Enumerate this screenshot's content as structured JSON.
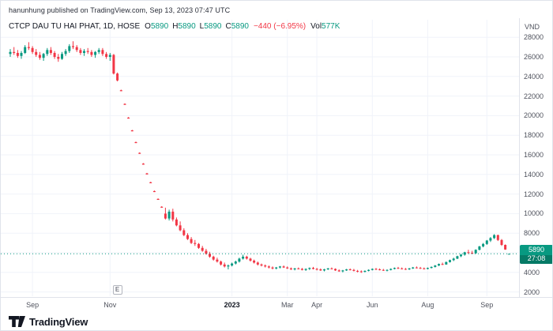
{
  "header": {
    "attribution": "hanunhung published on TradingView.com, Sep 13, 2023 07:47 UTC"
  },
  "legend": {
    "symbol": "CTCP DAU TU HAI PHAT, 1D, HOSE",
    "ohlc": [
      {
        "label": "O",
        "value": "5890"
      },
      {
        "label": "H",
        "value": "5890"
      },
      {
        "label": "L",
        "value": "5890"
      },
      {
        "label": "C",
        "value": "5890"
      }
    ],
    "change": "−440 (−6.95%)",
    "volume_label": "Vol",
    "volume_value": "577K"
  },
  "price_scale": {
    "currency": "VND",
    "last_price_label": "5890",
    "countdown": "27:08"
  },
  "events": [
    {
      "type": "earnings",
      "label": "E",
      "bar": 29
    }
  ],
  "footer": {
    "brand": "TradingView"
  },
  "colors": {
    "up": "#089981",
    "down": "#f23645",
    "grid": "#f0f3fa",
    "axis_border": "#e0e3eb",
    "text": "#131722",
    "muted": "#50535e",
    "countdown_bg": "#067a66"
  },
  "chart_data": {
    "type": "candlestick",
    "title": "CTCP DAU TU HAI PHAT, 1D, HOSE",
    "symbol": "CTCP DAU TU HAI PHAT",
    "timeframe": "1D",
    "exchange": "HOSE",
    "ylabel": "VND",
    "grid": true,
    "y_range": [
      1400,
      28500
    ],
    "y_ticks": [
      28000,
      26000,
      24000,
      22000,
      20000,
      18000,
      16000,
      14000,
      12000,
      10000,
      8000,
      6000,
      4000,
      2000
    ],
    "x_ticks": [
      {
        "label": "Sep",
        "bar": 6
      },
      {
        "label": "Nov",
        "bar": 27
      },
      {
        "label": "2023",
        "bar": 60,
        "major": true
      },
      {
        "label": "Mar",
        "bar": 75
      },
      {
        "label": "Apr",
        "bar": 83
      },
      {
        "label": "Jun",
        "bar": 98
      },
      {
        "label": "Aug",
        "bar": 113
      },
      {
        "label": "Sep",
        "bar": 129
      }
    ],
    "open": 5890,
    "high": 5890,
    "low": 5890,
    "close": 5890,
    "last_price": 5890,
    "prev_close": 6330,
    "change": -440,
    "change_pct": -6.95,
    "volume": "577K",
    "bars": [
      [
        26300,
        26800,
        26000,
        26500
      ],
      [
        26500,
        27000,
        26200,
        26400
      ],
      [
        26400,
        26700,
        25900,
        26100
      ],
      [
        26100,
        26600,
        25800,
        26400
      ],
      [
        26400,
        27200,
        26300,
        27000
      ],
      [
        27000,
        27500,
        26700,
        26900
      ],
      [
        26900,
        27100,
        26300,
        26500
      ],
      [
        26500,
        26800,
        26000,
        26200
      ],
      [
        26200,
        26500,
        25700,
        25900
      ],
      [
        25900,
        26400,
        25600,
        26300
      ],
      [
        26300,
        26900,
        26100,
        26700
      ],
      [
        26700,
        27000,
        26200,
        26400
      ],
      [
        26400,
        26600,
        25800,
        26000
      ],
      [
        26000,
        26300,
        25500,
        25800
      ],
      [
        25800,
        26500,
        25700,
        26300
      ],
      [
        26300,
        26800,
        26100,
        26600
      ],
      [
        26600,
        27300,
        26400,
        27100
      ],
      [
        27100,
        27600,
        26800,
        27000
      ],
      [
        27000,
        27200,
        26500,
        26700
      ],
      [
        26700,
        26900,
        26200,
        26400
      ],
      [
        26400,
        26800,
        26100,
        26600
      ],
      [
        26600,
        26900,
        26300,
        26500
      ],
      [
        26500,
        26700,
        26000,
        26200
      ],
      [
        26200,
        26600,
        25900,
        26500
      ],
      [
        26500,
        26900,
        26300,
        26700
      ],
      [
        26700,
        26900,
        26100,
        26300
      ],
      [
        26300,
        26500,
        25800,
        26000
      ],
      [
        26000,
        26400,
        25600,
        26200
      ],
      [
        26200,
        26300,
        24200,
        24300
      ],
      [
        24300,
        24400,
        23500,
        23600
      ],
      [
        22600,
        22650,
        22500,
        22500
      ],
      [
        21200,
        21250,
        21100,
        21100
      ],
      [
        19800,
        19850,
        19700,
        19700
      ],
      [
        18500,
        18550,
        18400,
        18400
      ],
      [
        17300,
        17350,
        17200,
        17200
      ],
      [
        16200,
        16250,
        16100,
        16100
      ],
      [
        15100,
        15150,
        15000,
        15000
      ],
      [
        14100,
        14150,
        14000,
        14000
      ],
      [
        13200,
        13250,
        13100,
        13100
      ],
      [
        12300,
        12350,
        12200,
        12200
      ],
      [
        11500,
        11550,
        11400,
        11400
      ],
      [
        10700,
        10750,
        10600,
        10600
      ],
      [
        10000,
        10600,
        9400,
        9500
      ],
      [
        9500,
        10400,
        9300,
        10200
      ],
      [
        10200,
        10500,
        9200,
        9400
      ],
      [
        9400,
        9600,
        8700,
        8800
      ],
      [
        8800,
        9200,
        8200,
        8300
      ],
      [
        8300,
        8500,
        7700,
        7800
      ],
      [
        7800,
        8000,
        7300,
        7400
      ],
      [
        7400,
        7600,
        6900,
        7000
      ],
      [
        7000,
        7300,
        6700,
        6900
      ],
      [
        6900,
        7000,
        6400,
        6500
      ],
      [
        6500,
        6700,
        6100,
        6200
      ],
      [
        6200,
        6400,
        5800,
        5900
      ],
      [
        5900,
        6100,
        5500,
        5600
      ],
      [
        5600,
        5700,
        5200,
        5300
      ],
      [
        5300,
        5500,
        5000,
        5100
      ],
      [
        5100,
        5200,
        4700,
        4800
      ],
      [
        4800,
        5000,
        4500,
        4600
      ],
      [
        4600,
        4800,
        4300,
        4700
      ],
      [
        4700,
        5000,
        4600,
        4900
      ],
      [
        4900,
        5200,
        4800,
        5100
      ],
      [
        5100,
        5500,
        5000,
        5400
      ],
      [
        5400,
        5800,
        5300,
        5600
      ],
      [
        5600,
        5700,
        5300,
        5400
      ],
      [
        5400,
        5500,
        5100,
        5200
      ],
      [
        5200,
        5300,
        4900,
        5000
      ],
      [
        5000,
        5100,
        4700,
        4800
      ],
      [
        4800,
        4900,
        4600,
        4700
      ],
      [
        4700,
        4800,
        4500,
        4600
      ],
      [
        4600,
        4700,
        4400,
        4500
      ],
      [
        4500,
        4600,
        4300,
        4400
      ],
      [
        4400,
        4550,
        4300,
        4500
      ],
      [
        4500,
        4650,
        4400,
        4600
      ],
      [
        4600,
        4700,
        4450,
        4500
      ],
      [
        4500,
        4600,
        4350,
        4400
      ],
      [
        4400,
        4500,
        4250,
        4300
      ],
      [
        4300,
        4450,
        4200,
        4400
      ],
      [
        4400,
        4500,
        4300,
        4350
      ],
      [
        4350,
        4450,
        4200,
        4250
      ],
      [
        4250,
        4400,
        4150,
        4350
      ],
      [
        4350,
        4500,
        4250,
        4450
      ],
      [
        4450,
        4550,
        4300,
        4350
      ],
      [
        4350,
        4450,
        4200,
        4300
      ],
      [
        4300,
        4400,
        4150,
        4200
      ],
      [
        4200,
        4350,
        4100,
        4300
      ],
      [
        4300,
        4450,
        4250,
        4400
      ],
      [
        4400,
        4500,
        4300,
        4350
      ],
      [
        4350,
        4400,
        4150,
        4200
      ],
      [
        4200,
        4300,
        4050,
        4100
      ],
      [
        4100,
        4250,
        4000,
        4200
      ],
      [
        4200,
        4350,
        4150,
        4300
      ],
      [
        4300,
        4400,
        4200,
        4250
      ],
      [
        4250,
        4350,
        4100,
        4150
      ],
      [
        4150,
        4250,
        4000,
        4100
      ],
      [
        4100,
        4200,
        3950,
        4050
      ],
      [
        4050,
        4200,
        4000,
        4150
      ],
      [
        4150,
        4300,
        4100,
        4250
      ],
      [
        4250,
        4400,
        4200,
        4350
      ],
      [
        4350,
        4450,
        4250,
        4300
      ],
      [
        4300,
        4400,
        4200,
        4250
      ],
      [
        4250,
        4350,
        4150,
        4200
      ],
      [
        4200,
        4300,
        4100,
        4250
      ],
      [
        4250,
        4400,
        4200,
        4350
      ],
      [
        4350,
        4500,
        4300,
        4450
      ],
      [
        4450,
        4550,
        4350,
        4400
      ],
      [
        4400,
        4500,
        4300,
        4350
      ],
      [
        4350,
        4450,
        4250,
        4300
      ],
      [
        4300,
        4450,
        4250,
        4400
      ],
      [
        4400,
        4550,
        4350,
        4500
      ],
      [
        4500,
        4600,
        4400,
        4450
      ],
      [
        4450,
        4550,
        4350,
        4400
      ],
      [
        4400,
        4500,
        4300,
        4350
      ],
      [
        4350,
        4500,
        4300,
        4450
      ],
      [
        4450,
        4600,
        4400,
        4550
      ],
      [
        4550,
        4750,
        4500,
        4700
      ],
      [
        4700,
        4900,
        4650,
        4850
      ],
      [
        4850,
        5000,
        4750,
        4800
      ],
      [
        4800,
        5100,
        4780,
        5050
      ],
      [
        5050,
        5300,
        5000,
        5250
      ],
      [
        5250,
        5500,
        5150,
        5400
      ],
      [
        5400,
        5700,
        5350,
        5650
      ],
      [
        5650,
        5900,
        5550,
        5800
      ],
      [
        5800,
        6100,
        5700,
        6050
      ],
      [
        6050,
        6300,
        5900,
        6000
      ],
      [
        6000,
        6200,
        5850,
        5950
      ],
      [
        5950,
        6350,
        5900,
        6300
      ],
      [
        6300,
        6700,
        6250,
        6650
      ],
      [
        6650,
        7000,
        6550,
        6900
      ],
      [
        6900,
        7300,
        6800,
        7250
      ],
      [
        7250,
        7600,
        7100,
        7500
      ],
      [
        7500,
        7900,
        7400,
        7800
      ],
      [
        7800,
        7850,
        7200,
        7300
      ],
      [
        7300,
        7400,
        6700,
        6800
      ],
      [
        6800,
        6850,
        6300,
        6330
      ],
      [
        5890,
        5890,
        5890,
        5890
      ]
    ]
  }
}
